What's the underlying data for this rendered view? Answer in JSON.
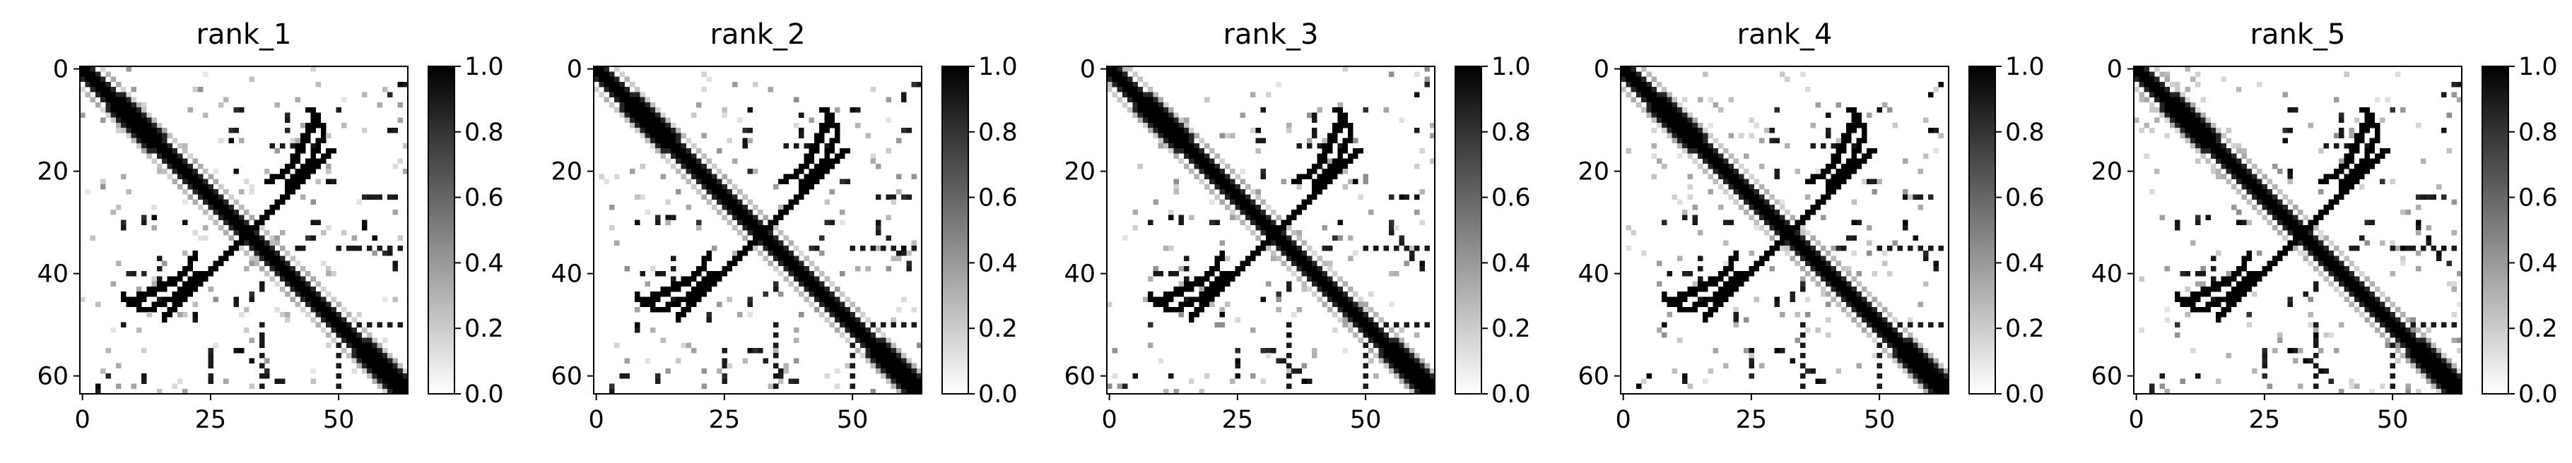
{
  "chart_data": [
    {
      "type": "heatmap",
      "title": "rank_1",
      "size": 64,
      "xlim": [
        0,
        63
      ],
      "ylim": [
        63,
        0
      ],
      "xticks": [
        0,
        25,
        50
      ],
      "yticks": [
        0,
        20,
        40,
        60
      ],
      "colormap": "gray_r",
      "vmin": 0.0,
      "vmax": 1.0,
      "colorbar_ticks": [
        "0.0",
        "0.2",
        "0.4",
        "0.6",
        "0.8",
        "1.0"
      ],
      "cross_center": [
        32,
        32
      ],
      "diagonal_band": "0-63 main diagonal, thickening near (10,10) and (58-63,58-63)",
      "anti_diagonal_band": "(20,48) to (40,16) through center",
      "side_branches": [
        "upper-right stroke from (36,22) to (44,10)",
        "lower-left stroke from (10,46) to (22,40)"
      ],
      "scattered_contacts": [
        "(40,8)",
        "(45,18)",
        "(55,30)",
        "(60,35)",
        "(30,45)",
        "(8,30)",
        "(12,60)",
        "(3,62)",
        "(35,52)",
        "(60,5)"
      ]
    },
    {
      "type": "heatmap",
      "title": "rank_2",
      "size": 64,
      "xlim": [
        0,
        63
      ],
      "ylim": [
        63,
        0
      ],
      "xticks": [
        0,
        25,
        50
      ],
      "yticks": [
        0,
        20,
        40,
        60
      ],
      "colormap": "gray_r",
      "vmin": 0.0,
      "vmax": 1.0,
      "colorbar_ticks": [
        "0.0",
        "0.2",
        "0.4",
        "0.6",
        "0.8",
        "1.0"
      ],
      "cross_center": [
        32,
        32
      ]
    },
    {
      "type": "heatmap",
      "title": "rank_3",
      "size": 64,
      "xlim": [
        0,
        63
      ],
      "ylim": [
        63,
        0
      ],
      "xticks": [
        0,
        25,
        50
      ],
      "yticks": [
        0,
        20,
        40,
        60
      ],
      "colormap": "gray_r",
      "vmin": 0.0,
      "vmax": 1.0,
      "colorbar_ticks": [
        "0.0",
        "0.2",
        "0.4",
        "0.6",
        "0.8",
        "1.0"
      ],
      "cross_center": [
        32,
        32
      ]
    },
    {
      "type": "heatmap",
      "title": "rank_4",
      "size": 64,
      "xlim": [
        0,
        63
      ],
      "ylim": [
        63,
        0
      ],
      "xticks": [
        0,
        25,
        50
      ],
      "yticks": [
        0,
        20,
        40,
        60
      ],
      "colormap": "gray_r",
      "vmin": 0.0,
      "vmax": 1.0,
      "colorbar_ticks": [
        "0.0",
        "0.2",
        "0.4",
        "0.6",
        "0.8",
        "1.0"
      ],
      "cross_center": [
        32,
        32
      ]
    },
    {
      "type": "heatmap",
      "title": "rank_5",
      "size": 64,
      "xlim": [
        0,
        63
      ],
      "ylim": [
        63,
        0
      ],
      "xticks": [
        0,
        25,
        50
      ],
      "yticks": [
        0,
        20,
        40,
        60
      ],
      "colormap": "gray_r",
      "vmin": 0.0,
      "vmax": 1.0,
      "colorbar_ticks": [
        "0.0",
        "0.2",
        "0.4",
        "0.6",
        "0.8",
        "1.0"
      ],
      "cross_center": [
        32,
        32
      ]
    }
  ]
}
